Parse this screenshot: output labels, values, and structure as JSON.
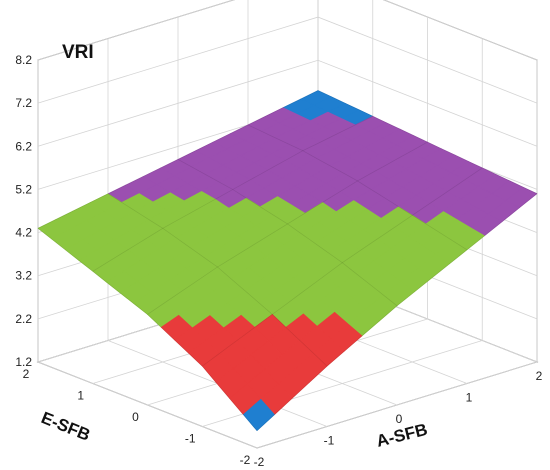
{
  "chart_data": {
    "type": "surface",
    "title": "VRI",
    "xlabel": "A-SFB",
    "ylabel": "E-SFB",
    "zlabel": "VRI",
    "x": [
      -2,
      -1,
      0,
      1,
      2
    ],
    "y": [
      -2,
      -1,
      0,
      1,
      2
    ],
    "x_ticks": [
      "-2",
      "-1",
      "0",
      "1",
      "2"
    ],
    "y_ticks": [
      "-2",
      "-1",
      "0",
      "1",
      "2"
    ],
    "z_ticks": [
      "1.2",
      "2.2",
      "3.2",
      "4.2",
      "5.2",
      "6.2",
      "7.2",
      "8.2"
    ],
    "zlim": [
      1.2,
      8.2
    ],
    "z": [
      [
        1.6,
        2.6,
        3.5,
        4.3,
        5.1
      ],
      [
        2.6,
        3.3,
        4.0,
        4.6,
        5.2
      ],
      [
        3.3,
        3.9,
        4.4,
        4.9,
        5.3
      ],
      [
        3.8,
        4.3,
        4.7,
        5.1,
        5.4
      ],
      [
        4.3,
        4.6,
        4.9,
        5.2,
        5.5
      ]
    ],
    "color_bands": [
      {
        "from": 1.2,
        "to": 2.0,
        "color": "#1f7fd0"
      },
      {
        "from": 2.0,
        "to": 3.2,
        "color": "#e83b3b"
      },
      {
        "from": 3.2,
        "to": 4.6,
        "color": "#8cc63f"
      },
      {
        "from": 4.6,
        "to": 5.35,
        "color": "#9b4fb0"
      },
      {
        "from": 5.35,
        "to": 8.2,
        "color": "#1f7fd0"
      }
    ],
    "grid": true
  }
}
